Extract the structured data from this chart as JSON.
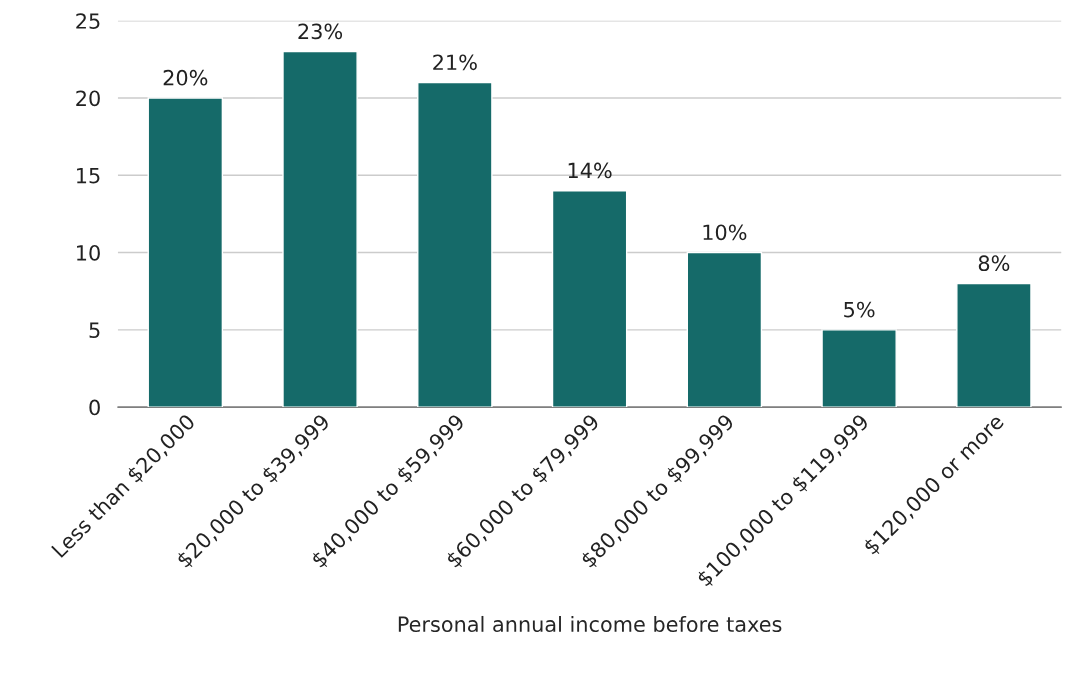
{
  "chart_data": {
    "type": "bar",
    "xlabel": "Personal annual income before taxes",
    "categories": [
      "Less than $20,000",
      "$20,000 to $39,999",
      "$40,000 to $59,999",
      "$60,000 to $79,999",
      "$80,000 to $99,999",
      "$100,000 to $119,999",
      "$120,000 or more"
    ],
    "values": [
      20,
      23,
      21,
      14,
      10,
      5,
      8
    ],
    "value_labels": [
      "20%",
      "23%",
      "21%",
      "14%",
      "10%",
      "5%",
      "8%"
    ],
    "color": "#156a69",
    "ylim": [
      0,
      25
    ],
    "yticks": [
      0,
      5,
      10,
      15,
      20,
      25
    ],
    "grid": "y",
    "legend": false
  }
}
